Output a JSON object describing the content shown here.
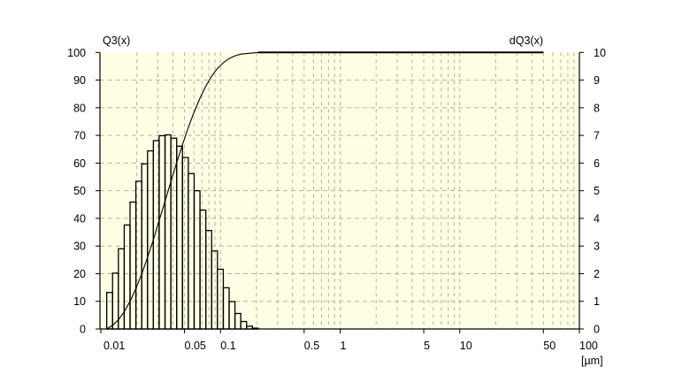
{
  "chart_data": {
    "type": "bar",
    "x_scale": "log",
    "xlim": [
      0.01,
      100
    ],
    "ylim_left": [
      0,
      100
    ],
    "ylim_right": [
      0,
      10
    ],
    "grid": true,
    "left_axis_label": "Q3(x)",
    "right_axis_label": "dQ3(x)",
    "x_unit_label": "[µm]",
    "x_ticks": [
      {
        "value": 0.01,
        "label": "0.01"
      },
      {
        "value": 0.05,
        "label": "0.05"
      },
      {
        "value": 0.1,
        "label": "0.1"
      },
      {
        "value": 0.5,
        "label": "0.5"
      },
      {
        "value": 1,
        "label": "1"
      },
      {
        "value": 5,
        "label": "5"
      },
      {
        "value": 10,
        "label": "10"
      },
      {
        "value": 50,
        "label": "50"
      },
      {
        "value": 100,
        "label": "100"
      }
    ],
    "y_left_ticks": [
      "0",
      "10",
      "20",
      "30",
      "40",
      "50",
      "60",
      "70",
      "80",
      "90",
      "100"
    ],
    "y_right_ticks": [
      "0",
      "1",
      "2",
      "3",
      "4",
      "5",
      "6",
      "7",
      "8",
      "9",
      "10"
    ],
    "bin_edges": [
      0.0112,
      0.01253,
      0.01402,
      0.01568,
      0.01754,
      0.01962,
      0.02195,
      0.02456,
      0.02747,
      0.03073,
      0.03438,
      0.03846,
      0.04303,
      0.04813,
      0.05385,
      0.06024,
      0.06739,
      0.07539,
      0.08434,
      0.09435,
      0.1056,
      0.1181,
      0.1321,
      0.1478,
      0.1653,
      0.185,
      0.2069
    ],
    "dQ3": [
      1.32,
      2.02,
      2.9,
      3.76,
      4.59,
      5.34,
      5.97,
      6.44,
      6.81,
      6.99,
      7.02,
      6.9,
      6.61,
      6.2,
      5.62,
      5.0,
      4.3,
      3.56,
      2.82,
      2.16,
      1.49,
      0.99,
      0.56,
      0.27,
      0.1,
      0.03
    ],
    "Q3_curve": {
      "x": [
        0.0112,
        0.01253,
        0.01402,
        0.01568,
        0.01754,
        0.01962,
        0.02195,
        0.02456,
        0.02747,
        0.03073,
        0.03438,
        0.03846,
        0.04303,
        0.04813,
        0.05385,
        0.06024,
        0.06739,
        0.07539,
        0.08434,
        0.09435,
        0.1056,
        0.1181,
        0.1321,
        0.1478,
        0.1653,
        0.185,
        0.2069,
        50
      ],
      "y": [
        0,
        1.3,
        3.3,
        6.2,
        10.0,
        14.6,
        19.9,
        25.9,
        32.3,
        39.2,
        46.1,
        53.2,
        60.1,
        66.7,
        72.9,
        78.5,
        83.5,
        87.8,
        91.4,
        94.2,
        96.3,
        97.8,
        98.8,
        99.4,
        99.6,
        99.8,
        100,
        100
      ]
    },
    "colors": {
      "plot_background": "#ffffe6",
      "grid": "#b5b294",
      "bars": "#000000",
      "curve": "#000000"
    }
  }
}
